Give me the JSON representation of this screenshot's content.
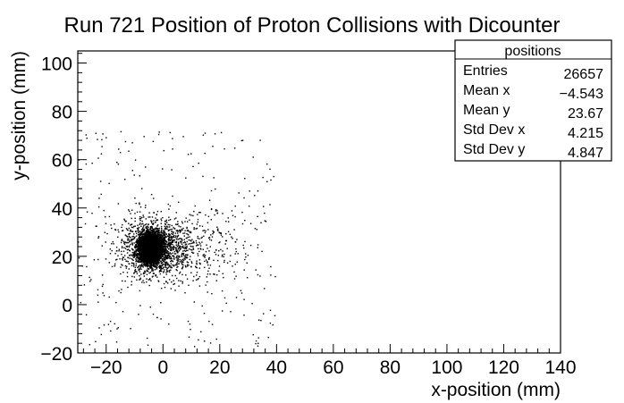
{
  "chart_data": {
    "type": "scatter",
    "title": "Run 721 Position of Proton Collisions with Dicounter",
    "xlabel": "x-position (mm)",
    "ylabel": "y-position (mm)",
    "xlim": [
      -30,
      140
    ],
    "ylim": [
      -20,
      105
    ],
    "x_ticks": [
      -20,
      0,
      20,
      40,
      60,
      80,
      100,
      120,
      140
    ],
    "y_ticks": [
      -20,
      0,
      20,
      40,
      60,
      80,
      100
    ],
    "x_tick_labels": [
      "−20",
      "0",
      "20",
      "40",
      "60",
      "80",
      "100",
      "120",
      "140"
    ],
    "y_tick_labels": [
      "−20",
      "0",
      "20",
      "40",
      "60",
      "80",
      "100"
    ],
    "grid": false,
    "stats_box": {
      "name": "positions",
      "rows": [
        {
          "label": "Entries",
          "value": "26657"
        },
        {
          "label": "Mean x",
          "value": "−4.543"
        },
        {
          "label": "Mean y",
          "value": "23.67"
        },
        {
          "label": "Std Dev x",
          "value": "4.215"
        },
        {
          "label": "Std Dev y",
          "value": "4.847"
        }
      ]
    },
    "series": [
      {
        "core": {
          "mean_x": -4.543,
          "mean_y": 23.67,
          "std_x": 4.215,
          "std_y": 4.847
        },
        "entries": 26657
      }
    ]
  },
  "colors": {
    "points": "#000000",
    "frame": "#000000",
    "background": "#ffffff"
  }
}
